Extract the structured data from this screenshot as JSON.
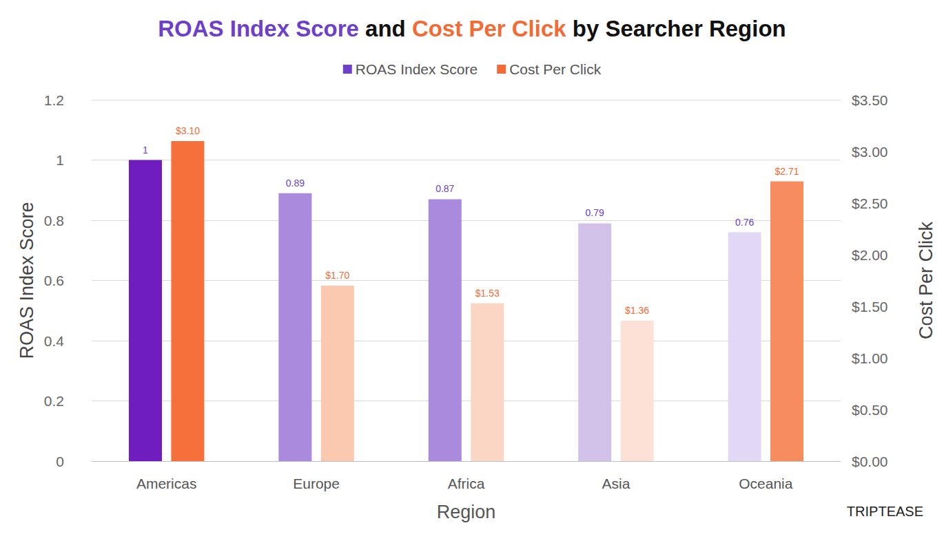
{
  "chart_data": {
    "type": "bar",
    "title": "ROAS Index Score and Cost Per Click by Searcher Region",
    "x_label": "Region",
    "y_label": "ROAS Index Score",
    "y2_label": "Cost Per Click",
    "categories": [
      "Americas",
      "Europe",
      "Africa",
      "Asia",
      "Oceania"
    ],
    "series": [
      {
        "name": "ROAS Index Score",
        "color": "#6e3fc8",
        "colors": [
          "#6f1dbf",
          "#a98adc",
          "#a98adc",
          "#d2c2ea",
          "#e2d8f5"
        ],
        "values": [
          1,
          0.89,
          0.87,
          0.79,
          0.76
        ]
      },
      {
        "name": "Cost Per Click",
        "color": "#f26b35",
        "axis": "y2",
        "colors": [
          "#f5703a",
          "#fbc8b0",
          "#fcd6c5",
          "#fde0d6",
          "#f78c5e"
        ],
        "values": [
          3.1,
          1.7,
          1.53,
          1.36,
          2.71
        ],
        "value_labels": [
          "$3.10",
          "$1.70",
          "$1.53",
          "$1.36",
          "$2.71"
        ]
      }
    ],
    "ylim": [
      0,
      1.2
    ],
    "yticks": [
      0,
      0.2,
      0.4,
      0.6,
      0.8,
      1,
      1.2
    ],
    "y2lim": [
      0,
      3.5
    ],
    "y2ticks": [
      {
        "value": 0,
        "label": "$0.00"
      },
      {
        "value": 0.5,
        "label": "$0.50"
      },
      {
        "value": 1,
        "label": "$1.00"
      },
      {
        "value": 1.5,
        "label": "$1.50"
      },
      {
        "value": 2,
        "label": "$2.00"
      },
      {
        "value": 2.5,
        "label": "$2.50"
      },
      {
        "value": 3,
        "label": "$3.00"
      },
      {
        "value": 3.5,
        "label": "$3.50"
      }
    ],
    "grid": true,
    "legend": "top",
    "data_labels": true,
    "annotations": [
      "TRIPTEASE"
    ]
  }
}
